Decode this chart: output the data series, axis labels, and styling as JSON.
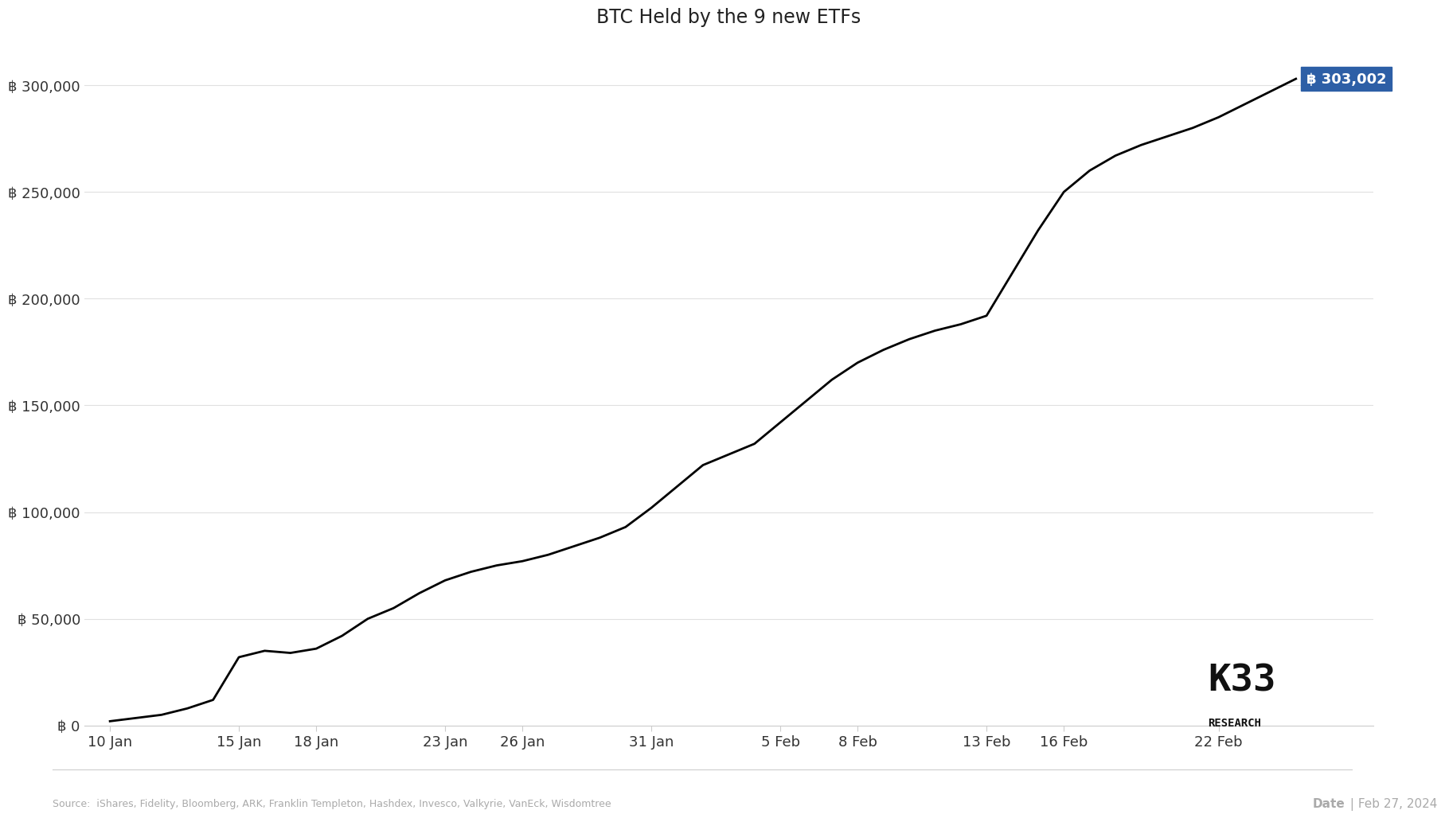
{
  "title": "BTC Held by the 9 new ETFs",
  "x_labels": [
    "10 Jan",
    "15 Jan",
    "18 Jan",
    "23 Jan",
    "26 Jan",
    "31 Jan",
    "5 Feb",
    "8 Feb",
    "13 Feb",
    "16 Feb",
    "22 Feb"
  ],
  "x_positions": [
    0,
    5,
    8,
    13,
    16,
    21,
    26,
    29,
    34,
    37,
    43
  ],
  "y_data": [
    [
      0,
      2000
    ],
    [
      1,
      3500
    ],
    [
      2,
      5000
    ],
    [
      3,
      8000
    ],
    [
      4,
      12000
    ],
    [
      5,
      32000
    ],
    [
      6,
      35000
    ],
    [
      7,
      34000
    ],
    [
      8,
      36000
    ],
    [
      9,
      42000
    ],
    [
      10,
      50000
    ],
    [
      11,
      55000
    ],
    [
      12,
      62000
    ],
    [
      13,
      68000
    ],
    [
      14,
      72000
    ],
    [
      15,
      75000
    ],
    [
      16,
      77000
    ],
    [
      17,
      80000
    ],
    [
      18,
      84000
    ],
    [
      19,
      88000
    ],
    [
      20,
      93000
    ],
    [
      21,
      102000
    ],
    [
      22,
      112000
    ],
    [
      23,
      122000
    ],
    [
      24,
      127000
    ],
    [
      25,
      132000
    ],
    [
      26,
      142000
    ],
    [
      27,
      152000
    ],
    [
      28,
      162000
    ],
    [
      29,
      170000
    ],
    [
      30,
      176000
    ],
    [
      31,
      181000
    ],
    [
      32,
      185000
    ],
    [
      33,
      188000
    ],
    [
      34,
      192000
    ],
    [
      35,
      212000
    ],
    [
      36,
      232000
    ],
    [
      37,
      250000
    ],
    [
      38,
      260000
    ],
    [
      39,
      267000
    ],
    [
      40,
      272000
    ],
    [
      41,
      276000
    ],
    [
      42,
      280000
    ],
    [
      43,
      285000
    ],
    [
      44,
      291000
    ],
    [
      45,
      297000
    ],
    [
      46,
      303002
    ]
  ],
  "annotation_value": "฿ 303,002",
  "annotation_color": "#2d5fa6",
  "annotation_text_color": "#ffffff",
  "line_color": "#000000",
  "line_width": 2.0,
  "ylim": [
    0,
    320000
  ],
  "y_ticks": [
    0,
    50000,
    100000,
    150000,
    200000,
    250000,
    300000
  ],
  "y_tick_labels": [
    "฿ 0",
    "฿ 50,000",
    "฿ 100,000",
    "฿ 150,000",
    "฿ 200,000",
    "฿ 250,000",
    "฿ 300,000"
  ],
  "source_text": "Source:  iShares, Fidelity, Bloomberg, ARK, Franklin Templeton, Hashdex, Invesco, Valkyrie, VanEck, Wisdomtree",
  "date_label": "Date",
  "date_value": "Feb 27, 2024",
  "background_color": "#ffffff",
  "logo_text_k33": "K33",
  "logo_text_research": "RESEARCH",
  "grid_color": "#e0e0e0",
  "tick_label_fontsize": 13,
  "title_fontsize": 17
}
